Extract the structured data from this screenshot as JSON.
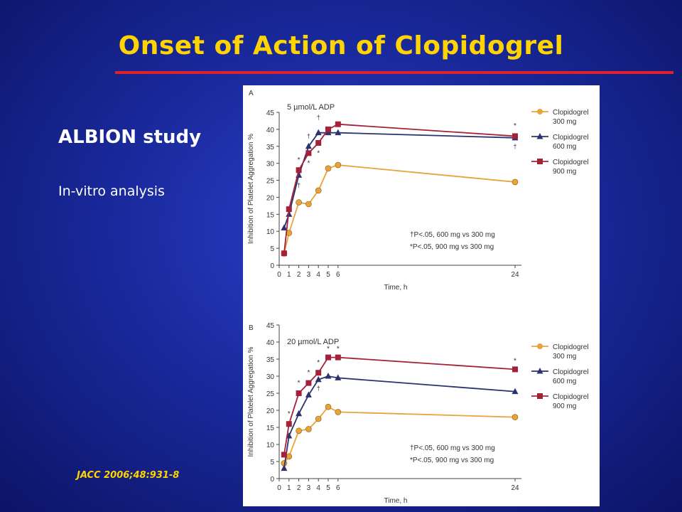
{
  "slide": {
    "title": "Onset of Action of Clopidogrel",
    "study": "ALBION study",
    "analysis": "In-vitro analysis",
    "citation": "JACC 2006;48:931-8"
  },
  "colors": {
    "title": "#ffd400",
    "rule": "#e0202a",
    "series_300": "#e8a33a",
    "series_600": "#2b3270",
    "series_900": "#a3223a"
  },
  "chart_data": [
    {
      "type": "line",
      "panel": "A",
      "title": "5 µmol/L ADP",
      "xlabel": "Time, h",
      "ylabel": "Inhibition of Platelet Aggregation %",
      "x_ticks": [
        "0",
        "1",
        "2",
        "3",
        "4",
        "5",
        "6",
        "24"
      ],
      "y_ticks": [
        "0",
        "5",
        "10",
        "15",
        "20",
        "25",
        "30",
        "35",
        "40",
        "45"
      ],
      "ylim": [
        0,
        45
      ],
      "legend_position": "right",
      "series": [
        {
          "name": "Clopidogrel 300 mg",
          "x": [
            0.5,
            1,
            2,
            3,
            4,
            5,
            6,
            24
          ],
          "y": [
            3.5,
            9.5,
            18.5,
            18,
            22,
            28.5,
            29.5,
            24.5
          ]
        },
        {
          "name": "Clopidogrel 600 mg",
          "x": [
            0.5,
            1,
            2,
            3,
            4,
            5,
            6,
            24
          ],
          "y": [
            11,
            15,
            26.5,
            35,
            39,
            39,
            39,
            37.5
          ]
        },
        {
          "name": "Clopidogrel 900 mg",
          "x": [
            0.5,
            1,
            2,
            3,
            4,
            5,
            6,
            24
          ],
          "y": [
            3.5,
            16.5,
            28,
            33,
            36,
            40,
            41.5,
            38
          ]
        }
      ],
      "annotations": {
        "daggers": [
          {
            "x": 2,
            "y": 23.5
          },
          {
            "x": 3,
            "y": 38
          },
          {
            "x": 4,
            "y": 43.5
          },
          {
            "x": 24,
            "y": 35
          }
        ],
        "stars": [
          {
            "x": 2,
            "y": 31
          },
          {
            "x": 3,
            "y": 30
          },
          {
            "x": 4,
            "y": 33
          },
          {
            "x": 24,
            "y": 41
          }
        ]
      },
      "footnotes": [
        "†P<.05, 600 mg vs 300 mg",
        "*P<.05, 900 mg vs 300 mg"
      ]
    },
    {
      "type": "line",
      "panel": "B",
      "title": "20 µmol/L ADP",
      "xlabel": "Time, h",
      "ylabel": "Inhibition of Platelet Aggregation %",
      "x_ticks": [
        "0",
        "1",
        "2",
        "3",
        "4",
        "5",
        "6",
        "24"
      ],
      "y_ticks": [
        "0",
        "5",
        "10",
        "15",
        "20",
        "25",
        "30",
        "35",
        "40",
        "45"
      ],
      "ylim": [
        0,
        45
      ],
      "legend_position": "right",
      "series": [
        {
          "name": "Clopidogrel 300 mg",
          "x": [
            0.5,
            1,
            2,
            3,
            4,
            5,
            6,
            24
          ],
          "y": [
            4.5,
            6.5,
            14,
            14.5,
            17.5,
            21,
            19.5,
            18
          ]
        },
        {
          "name": "Clopidogrel 600 mg",
          "x": [
            0.5,
            1,
            2,
            3,
            4,
            5,
            6,
            24
          ],
          "y": [
            3,
            12.5,
            19,
            24.5,
            29,
            30,
            29.5,
            25.5
          ]
        },
        {
          "name": "Clopidogrel 900 mg",
          "x": [
            0.5,
            1,
            2,
            3,
            4,
            5,
            6,
            24
          ],
          "y": [
            7,
            16,
            25,
            28,
            31,
            35.5,
            35.5,
            32
          ]
        }
      ],
      "annotations": {
        "daggers": [
          {
            "x": 4,
            "y": 26.5
          }
        ],
        "stars": [
          {
            "x": 1,
            "y": 19
          },
          {
            "x": 2,
            "y": 28
          },
          {
            "x": 3,
            "y": 31
          },
          {
            "x": 4,
            "y": 34
          },
          {
            "x": 5,
            "y": 38
          },
          {
            "x": 6,
            "y": 38
          },
          {
            "x": 24,
            "y": 34.5
          }
        ]
      },
      "footnotes": [
        "†P<.05, 600 mg vs 300 mg",
        "*P<.05, 900 mg vs 300 mg"
      ]
    }
  ]
}
